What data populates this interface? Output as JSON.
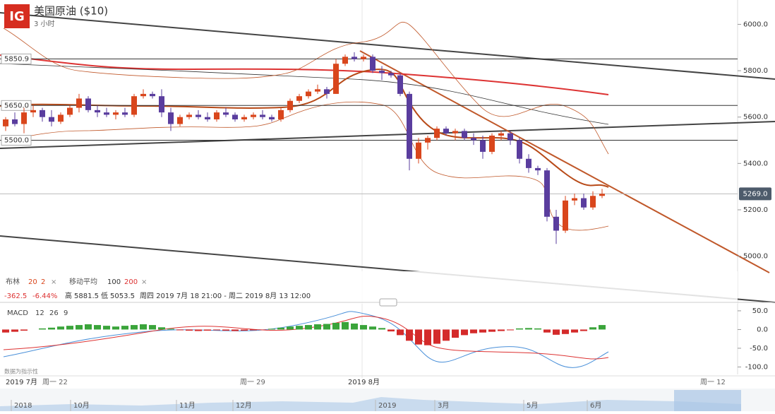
{
  "header": {
    "logo": "IG",
    "title": "美国原油 ($10)",
    "interval": "3 小时"
  },
  "chart_data": {
    "type": "candlestick",
    "ohlc": [
      [
        5560,
        5600,
        5540,
        5590
      ],
      [
        5590,
        5620,
        5560,
        5570
      ],
      [
        5570,
        5640,
        5530,
        5620
      ],
      [
        5620,
        5650,
        5600,
        5630
      ],
      [
        5630,
        5640,
        5580,
        5600
      ],
      [
        5600,
        5630,
        5560,
        5580
      ],
      [
        5580,
        5620,
        5570,
        5610
      ],
      [
        5610,
        5650,
        5600,
        5640
      ],
      [
        5640,
        5700,
        5620,
        5680
      ],
      [
        5680,
        5690,
        5620,
        5630
      ],
      [
        5630,
        5650,
        5600,
        5620
      ],
      [
        5620,
        5640,
        5600,
        5610
      ],
      [
        5610,
        5630,
        5590,
        5620
      ],
      [
        5620,
        5640,
        5600,
        5610
      ],
      [
        5610,
        5700,
        5600,
        5690
      ],
      [
        5690,
        5720,
        5680,
        5700
      ],
      [
        5700,
        5710,
        5680,
        5690
      ],
      [
        5690,
        5720,
        5600,
        5620
      ],
      [
        5620,
        5640,
        5540,
        5570
      ],
      [
        5570,
        5610,
        5560,
        5600
      ],
      [
        5600,
        5620,
        5590,
        5610
      ],
      [
        5610,
        5630,
        5590,
        5600
      ],
      [
        5600,
        5620,
        5580,
        5590
      ],
      [
        5590,
        5630,
        5580,
        5620
      ],
      [
        5620,
        5640,
        5600,
        5610
      ],
      [
        5610,
        5620,
        5580,
        5590
      ],
      [
        5590,
        5610,
        5580,
        5600
      ],
      [
        5600,
        5620,
        5590,
        5610
      ],
      [
        5610,
        5630,
        5590,
        5600
      ],
      [
        5600,
        5610,
        5580,
        5590
      ],
      [
        5590,
        5640,
        5580,
        5630
      ],
      [
        5630,
        5680,
        5620,
        5670
      ],
      [
        5670,
        5700,
        5660,
        5690
      ],
      [
        5690,
        5720,
        5680,
        5710
      ],
      [
        5710,
        5740,
        5700,
        5720
      ],
      [
        5720,
        5730,
        5680,
        5700
      ],
      [
        5700,
        5850,
        5700,
        5830
      ],
      [
        5830,
        5870,
        5820,
        5860
      ],
      [
        5860,
        5880,
        5840,
        5850
      ],
      [
        5850,
        5870,
        5840,
        5860
      ],
      [
        5860,
        5870,
        5790,
        5800
      ],
      [
        5800,
        5820,
        5760,
        5790
      ],
      [
        5790,
        5800,
        5770,
        5780
      ],
      [
        5780,
        5790,
        5690,
        5700
      ],
      [
        5700,
        5710,
        5370,
        5420
      ],
      [
        5420,
        5510,
        5400,
        5490
      ],
      [
        5490,
        5520,
        5460,
        5510
      ],
      [
        5510,
        5560,
        5500,
        5550
      ],
      [
        5550,
        5560,
        5520,
        5530
      ],
      [
        5530,
        5550,
        5500,
        5540
      ],
      [
        5540,
        5550,
        5500,
        5510
      ],
      [
        5510,
        5530,
        5480,
        5500
      ],
      [
        5500,
        5520,
        5420,
        5450
      ],
      [
        5450,
        5530,
        5440,
        5520
      ],
      [
        5520,
        5540,
        5500,
        5530
      ],
      [
        5530,
        5540,
        5480,
        5500
      ],
      [
        5500,
        5510,
        5400,
        5420
      ],
      [
        5420,
        5440,
        5360,
        5380
      ],
      [
        5380,
        5390,
        5350,
        5370
      ],
      [
        5370,
        5380,
        5150,
        5170
      ],
      [
        5170,
        5200,
        5053,
        5110
      ],
      [
        5110,
        5260,
        5100,
        5240
      ],
      [
        5240,
        5270,
        5220,
        5250
      ],
      [
        5250,
        5270,
        5200,
        5210
      ],
      [
        5210,
        5280,
        5200,
        5260
      ],
      [
        5260,
        5290,
        5250,
        5269
      ]
    ],
    "up_color": "#d9461c",
    "down_color": "#5a3d9e",
    "ylim": [
      4825,
      6105
    ],
    "yticks": [
      {
        "value": 6000,
        "label": "6000.0"
      },
      {
        "value": 5800,
        "label": "5800.0"
      },
      {
        "value": 5600,
        "label": "5600.0"
      },
      {
        "value": 5400,
        "label": "5400.0"
      },
      {
        "value": 5200,
        "label": "5200.0"
      },
      {
        "value": 5000,
        "label": "5000.0"
      }
    ],
    "levels": [
      {
        "value": 5850.9,
        "label": "5850.9"
      },
      {
        "value": 5650,
        "label": "5650.0"
      },
      {
        "value": 5500,
        "label": "5500.0"
      }
    ],
    "last_price": {
      "value": 5269,
      "label": "5269.0"
    },
    "macd": {
      "name": "MACD",
      "fast": 12,
      "slow": 26,
      "signal": 9,
      "values": [
        -8,
        -6,
        -3,
        0,
        3,
        5,
        8,
        10,
        12,
        14,
        12,
        10,
        8,
        10,
        12,
        14,
        12,
        6,
        2,
        -2,
        -3,
        -4,
        -3,
        -2,
        -3,
        -4,
        -3,
        -2,
        -1,
        2,
        5,
        8,
        10,
        12,
        14,
        15,
        18,
        20,
        16,
        12,
        8,
        4,
        -5,
        -15,
        -30,
        -40,
        -42,
        -38,
        -30,
        -22,
        -15,
        -10,
        -8,
        -6,
        -4,
        -2,
        3,
        4,
        3,
        -8,
        -14,
        -12,
        -8,
        -4,
        6,
        12
      ],
      "pos_color": "#3aa43a",
      "neg_color": "#d42a2a",
      "ylim": [
        -120,
        65
      ],
      "yticks": [
        {
          "value": 50,
          "label": "50.0"
        },
        {
          "value": 0,
          "label": "0.0"
        },
        {
          "value": -50,
          "label": "-50.0"
        },
        {
          "value": -100,
          "label": "-100.0"
        }
      ]
    }
  },
  "indicators": {
    "bollinger": "布林",
    "bb_period": 20,
    "bb_dev": 2,
    "close": "×",
    "ma": "移动平均",
    "ma_fast": 100,
    "ma_slow": 200,
    "ma_close": "×"
  },
  "stats": {
    "change": -362.5,
    "change_pct": "-6.44%",
    "high_label": "高",
    "high": 5881.5,
    "low_label": "低",
    "low": 5053.5,
    "range": "周四 2019 7月 18 21:00 - 周二 2019 8月 13 12:00"
  },
  "disclaimer": "数据为指示性",
  "time_labels": [
    "2019 7月",
    "周一 22",
    "周一 29",
    "2019 8月",
    "周一 12"
  ],
  "navigator_labels": [
    "2018",
    "10月",
    "11月",
    "12月",
    "2019",
    "3月",
    "5月",
    "6月"
  ]
}
